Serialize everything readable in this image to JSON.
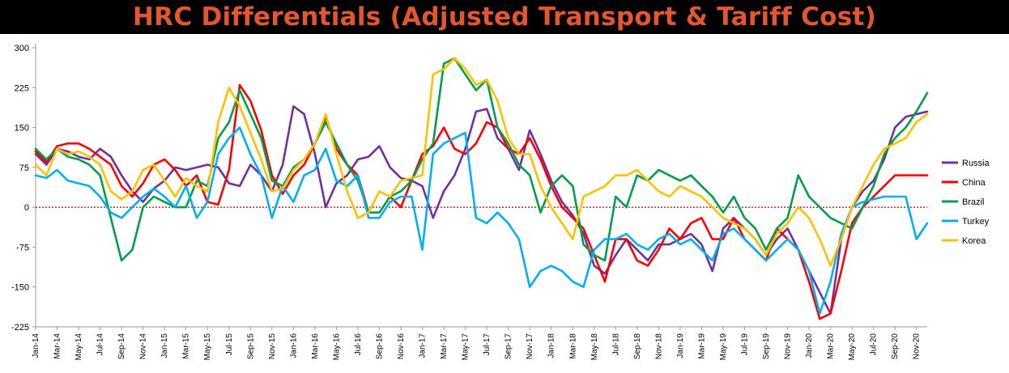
{
  "title": "HRC Differentials (Adjusted Transport & Tariff Cost)",
  "chart_data": {
    "type": "line",
    "ylim": [
      -225,
      300
    ],
    "yticks": [
      300,
      225,
      150,
      75,
      0,
      -75,
      -150,
      -225
    ],
    "x_periods": 84,
    "x_start": "Jan-14",
    "xtick_labels": [
      "Jan-14",
      "Mar-14",
      "May-14",
      "Jul-14",
      "Sep-14",
      "Nov-14",
      "Jan-15",
      "Mar-15",
      "May-15",
      "Jul-15",
      "Sep-15",
      "Nov-15",
      "Jan-16",
      "Mar-16",
      "May-16",
      "Jul-16",
      "Sep-16",
      "Nov-16",
      "Jan-17",
      "Mar-17",
      "May-17",
      "Jul-17",
      "Sep-17",
      "Nov-17",
      "Jan-18",
      "Mar-18",
      "May-18",
      "Jul-18",
      "Sep-18",
      "Nov-18",
      "Jan-19",
      "Mar-19",
      "May-19",
      "Jul-19",
      "Sep-19",
      "Nov-19",
      "Jan-20",
      "Mar-20",
      "May-20",
      "Jul-20",
      "Sep-20",
      "Nov-20"
    ],
    "zero_line": true,
    "grid": false,
    "legend_position": "right",
    "series": [
      {
        "name": "Russia",
        "color": "#7030a0",
        "x": [
          0,
          1,
          2,
          3,
          4,
          5,
          6,
          7,
          8,
          9,
          10,
          11,
          12,
          13,
          14,
          15,
          16,
          17,
          18,
          19,
          20,
          21,
          22,
          23,
          24,
          25,
          26,
          27,
          28,
          29,
          30,
          31,
          32,
          33,
          34,
          35,
          36,
          37,
          38,
          39,
          40,
          41,
          42,
          43,
          44,
          45,
          46,
          47,
          48,
          49,
          50,
          51,
          52,
          53,
          54,
          55,
          56,
          57,
          58,
          59,
          60,
          61,
          62,
          63,
          64,
          65,
          66,
          67,
          68,
          69,
          70,
          71,
          72,
          73,
          74,
          75,
          76,
          77,
          78,
          79,
          80,
          81,
          82,
          83
        ],
        "y": [
          100,
          80,
          110,
          105,
          95,
          90,
          110,
          95,
          60,
          30,
          10,
          35,
          50,
          75,
          70,
          75,
          80,
          75,
          45,
          40,
          80,
          60,
          30,
          80,
          190,
          175,
          100,
          0,
          45,
          60,
          90,
          95,
          115,
          75,
          55,
          50,
          40,
          -20,
          30,
          60,
          110,
          180,
          185,
          130,
          110,
          70,
          145,
          100,
          50,
          10,
          -15,
          -50,
          -110,
          -125,
          -90,
          -60,
          -80,
          -100,
          -70,
          -70,
          -60,
          -50,
          -70,
          -120,
          -40,
          -20,
          -40,
          -60,
          -90,
          -60,
          -40,
          -80,
          -120,
          -160,
          -200,
          -60,
          0,
          30,
          50,
          90,
          150,
          170,
          175,
          180
        ]
      },
      {
        "name": "China",
        "color": "#ff0000",
        "x": [
          0,
          1,
          2,
          3,
          4,
          5,
          6,
          7,
          8,
          9,
          10,
          11,
          12,
          13,
          14,
          15,
          16,
          17,
          18,
          19,
          20,
          21,
          22,
          23,
          24,
          25,
          26,
          27,
          28,
          29,
          30,
          31,
          32,
          33,
          34,
          35,
          36,
          37,
          38,
          39,
          40,
          41,
          42,
          43,
          44,
          45,
          46,
          47,
          48,
          49,
          50,
          51,
          52,
          53,
          54,
          55,
          56,
          57,
          58,
          59,
          60,
          61,
          62,
          63,
          64,
          65,
          66,
          67,
          68,
          69,
          70,
          71,
          72,
          73,
          74,
          75,
          76,
          77,
          78,
          79,
          80,
          81,
          82,
          83
        ],
        "y": [
          105,
          85,
          115,
          120,
          120,
          110,
          95,
          80,
          40,
          20,
          45,
          80,
          90,
          70,
          40,
          60,
          10,
          5,
          70,
          230,
          200,
          145,
          60,
          25,
          60,
          80,
          120,
          170,
          110,
          80,
          60,
          -10,
          -10,
          20,
          0,
          50,
          100,
          115,
          150,
          110,
          100,
          120,
          160,
          150,
          110,
          100,
          130,
          90,
          40,
          0,
          -20,
          -40,
          -90,
          -140,
          -60,
          -60,
          -100,
          -110,
          -80,
          -40,
          -60,
          -30,
          -20,
          -60,
          -60,
          -20,
          -60,
          -80,
          -100,
          -40,
          -60,
          -80,
          -140,
          -210,
          -200,
          -120,
          -30,
          0,
          20,
          40,
          60,
          60,
          60,
          60
        ]
      },
      {
        "name": "Brazil",
        "color": "#00a04a",
        "x": [
          0,
          1,
          2,
          3,
          4,
          5,
          6,
          7,
          8,
          9,
          10,
          11,
          12,
          13,
          14,
          15,
          16,
          17,
          18,
          19,
          20,
          21,
          22,
          23,
          24,
          25,
          26,
          27,
          28,
          29,
          30,
          31,
          32,
          33,
          34,
          35,
          36,
          37,
          38,
          39,
          40,
          41,
          42,
          43,
          44,
          45,
          46,
          47,
          48,
          49,
          50,
          51,
          52,
          53,
          54,
          55,
          56,
          57,
          58,
          59,
          60,
          61,
          62,
          63,
          64,
          65,
          66,
          67,
          68,
          69,
          70,
          71,
          72,
          73,
          74,
          75,
          76,
          77,
          78,
          79,
          80,
          81,
          82,
          83
        ],
        "y": [
          110,
          90,
          110,
          95,
          90,
          80,
          60,
          -20,
          -100,
          -80,
          0,
          20,
          10,
          0,
          0,
          50,
          40,
          130,
          160,
          220,
          175,
          130,
          50,
          40,
          75,
          90,
          120,
          160,
          120,
          80,
          50,
          -10,
          -10,
          20,
          30,
          50,
          90,
          120,
          270,
          280,
          250,
          220,
          240,
          150,
          120,
          80,
          60,
          -10,
          40,
          60,
          40,
          -70,
          -90,
          -100,
          20,
          0,
          60,
          50,
          70,
          60,
          50,
          60,
          40,
          20,
          -10,
          20,
          -20,
          -40,
          -80,
          -40,
          -20,
          60,
          20,
          0,
          -20,
          -30,
          -40,
          0,
          40,
          100,
          130,
          150,
          180,
          215
        ]
      },
      {
        "name": "Turkey",
        "color": "#00b0f0",
        "x": [
          0,
          1,
          2,
          3,
          4,
          5,
          6,
          7,
          8,
          9,
          10,
          11,
          12,
          13,
          14,
          15,
          16,
          17,
          18,
          19,
          20,
          21,
          22,
          23,
          24,
          25,
          26,
          27,
          28,
          29,
          30,
          31,
          32,
          33,
          34,
          35,
          36,
          37,
          38,
          39,
          40,
          41,
          42,
          43,
          44,
          45,
          46,
          47,
          48,
          49,
          50,
          51,
          52,
          53,
          54,
          55,
          56,
          57,
          58,
          59,
          60,
          61,
          62,
          63,
          64,
          65,
          66,
          67,
          68,
          69,
          70,
          71,
          72,
          73,
          74,
          75,
          76,
          77,
          78,
          79,
          80,
          81,
          82,
          83
        ],
        "y": [
          60,
          55,
          70,
          50,
          45,
          40,
          20,
          -10,
          -20,
          0,
          20,
          35,
          20,
          0,
          40,
          -20,
          10,
          100,
          130,
          150,
          100,
          60,
          -20,
          40,
          10,
          60,
          70,
          110,
          50,
          40,
          60,
          -20,
          -20,
          10,
          20,
          20,
          -80,
          100,
          120,
          130,
          140,
          -20,
          -30,
          -10,
          -30,
          -60,
          -150,
          -120,
          -110,
          -120,
          -140,
          -150,
          -80,
          -60,
          -60,
          -50,
          -70,
          -80,
          -60,
          -50,
          -70,
          -60,
          -80,
          -100,
          -50,
          -40,
          -60,
          -80,
          -100,
          -80,
          -60,
          -80,
          -120,
          -200,
          -140,
          -50,
          0,
          10,
          15,
          20,
          20,
          20,
          -60,
          -30
        ]
      },
      {
        "name": "Korea",
        "color": "#ffc000",
        "x": [
          0,
          1,
          2,
          3,
          4,
          5,
          6,
          7,
          8,
          9,
          10,
          11,
          12,
          13,
          14,
          15,
          16,
          17,
          18,
          19,
          20,
          21,
          22,
          23,
          24,
          25,
          26,
          27,
          28,
          29,
          30,
          31,
          32,
          33,
          34,
          35,
          36,
          37,
          38,
          39,
          40,
          41,
          42,
          43,
          44,
          45,
          46,
          47,
          48,
          49,
          50,
          51,
          52,
          53,
          54,
          55,
          56,
          57,
          58,
          59,
          60,
          61,
          62,
          63,
          64,
          65,
          66,
          67,
          68,
          69,
          70,
          71,
          72,
          73,
          74,
          75,
          76,
          77,
          78,
          79,
          80,
          81,
          82,
          83
        ],
        "y": [
          80,
          60,
          110,
          100,
          105,
          95,
          80,
          30,
          15,
          30,
          70,
          80,
          50,
          20,
          55,
          40,
          30,
          160,
          225,
          190,
          140,
          90,
          30,
          35,
          70,
          90,
          120,
          175,
          100,
          30,
          -20,
          -10,
          30,
          20,
          50,
          55,
          60,
          250,
          260,
          280,
          260,
          230,
          240,
          200,
          130,
          100,
          100,
          40,
          0,
          -30,
          -60,
          20,
          30,
          40,
          60,
          60,
          70,
          50,
          30,
          20,
          40,
          30,
          20,
          0,
          -20,
          -30,
          -40,
          -60,
          -90,
          -50,
          -30,
          0,
          -20,
          -60,
          -110,
          -60,
          0,
          40,
          80,
          110,
          120,
          130,
          160,
          175
        ]
      }
    ]
  }
}
